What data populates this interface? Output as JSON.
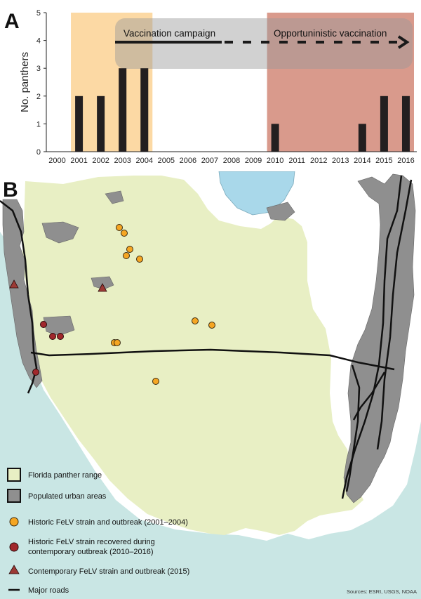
{
  "panel_a": {
    "letter": "A",
    "arrow_labels": {
      "vaccination": "Vaccination campaign",
      "opportunistic": "Opportuninistic vaccination"
    },
    "colors": {
      "bar": "#231f20",
      "vaccination_shade": "#fcd9a4",
      "opportunistic_shade": "#d99a8c",
      "arrow_band": "#9a9a9a"
    }
  },
  "chart_data": {
    "type": "bar",
    "ylabel": "No. panthers",
    "ylim": [
      0,
      5
    ],
    "yticks": [
      "0",
      "1",
      "2",
      "3",
      "4",
      "5"
    ],
    "categories": [
      "2000",
      "2001",
      "2002",
      "2003",
      "2004",
      "2005",
      "2006",
      "2007",
      "2008",
      "2009",
      "2010",
      "2011",
      "2012",
      "2013",
      "2014",
      "2015",
      "2016"
    ],
    "values": [
      0,
      2,
      2,
      3,
      3,
      0,
      0,
      0,
      0,
      0,
      1,
      0,
      0,
      0,
      1,
      2,
      2
    ],
    "shaded_periods": [
      {
        "from": "2001",
        "to": "2004"
      },
      {
        "from": "2010",
        "to": "2016"
      }
    ]
  },
  "panel_b": {
    "letter": "B",
    "legend": {
      "panther_range": "Florida panther range",
      "urban": "Populated urban areas",
      "historic": "Historic FeLV strain and outbreak (2001–2004)",
      "recovered_line1": "Historic FeLV strain recovered during",
      "recovered_line2": "contemporary outbreak (2010–2016)",
      "contemporary": "Contemporary FeLV strain and outbreak (2015)",
      "roads": "Major roads"
    },
    "source": "Sources: ESRI, USGS, NOAA",
    "colors": {
      "sea": "#c9e6e4",
      "land": "#ffffff",
      "panther_range": "#e8efc4",
      "urban": "#8f8f8f",
      "lake": "#a9d8ea",
      "orange_marker": "#f5a623",
      "red_marker": "#a1282c",
      "triangle_marker": "#9c3a35"
    }
  }
}
